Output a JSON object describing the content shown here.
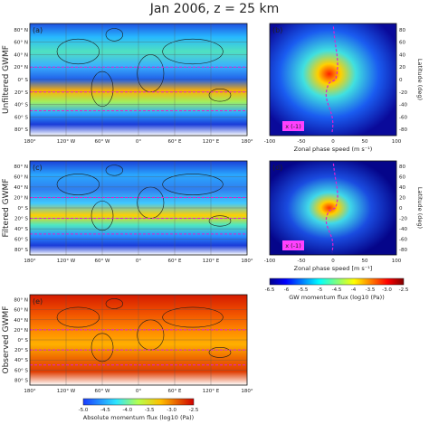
{
  "figure_title": "Jan 2006, z = 25 km",
  "panels": {
    "a": {
      "label": "(a)",
      "row_label": "Unfiltered GWMF"
    },
    "b": {
      "label": "(b)",
      "multiplier": "x (-1)"
    },
    "c": {
      "label": "(c)",
      "row_label": "Filtered GWMF"
    },
    "d": {
      "label": "(d)",
      "multiplier": "x (-1)"
    },
    "e": {
      "label": "(e)",
      "row_label": "Observed GWMF"
    }
  },
  "chart_data": [
    {
      "type": "heatmap",
      "panel": "a",
      "subtitle": "Unfiltered GWMF",
      "x_ticks": [
        "180°",
        "120° W",
        "60° W",
        "0°",
        "60° E",
        "120° E",
        "180°"
      ],
      "y_ticks": [
        "80° N",
        "60° N",
        "40° N",
        "20° N",
        "0° S",
        "20° S",
        "40° S",
        "60° S",
        "80° S"
      ],
      "xlim": [
        -180,
        180
      ],
      "ylim": [
        -90,
        90
      ],
      "reference_lines_lat": [
        20,
        -20,
        -50
      ],
      "colorbar": "Absolute momentum flux (log10 (Pa))"
    },
    {
      "type": "heatmap",
      "panel": "b",
      "xlabel": "Zonal phase speed (m s⁻¹)",
      "ylabel": "Latitude (deg)",
      "x_ticks": [
        -100,
        -50,
        0,
        50,
        100
      ],
      "y_ticks": [
        80,
        60,
        40,
        20,
        0,
        -20,
        -40,
        -60,
        -80
      ],
      "xlim": [
        -100,
        100
      ],
      "ylim": [
        -90,
        90
      ],
      "annotation": "x (-1)"
    },
    {
      "type": "heatmap",
      "panel": "c",
      "subtitle": "Filtered GWMF",
      "x_ticks": [
        "180°",
        "120° W",
        "60° W",
        "0°",
        "60° E",
        "120° E",
        "180°"
      ],
      "y_ticks": [
        "80° N",
        "60° N",
        "40° N",
        "20° N",
        "0° S",
        "20° S",
        "40° S",
        "60° S",
        "80° S"
      ],
      "xlim": [
        -180,
        180
      ],
      "ylim": [
        -90,
        90
      ],
      "reference_lines_lat": [
        20,
        -20,
        -50
      ]
    },
    {
      "type": "heatmap",
      "panel": "d",
      "xlabel": "Zonal phase speed [m s⁻¹]",
      "ylabel": "Latitude (deg)",
      "x_ticks": [
        -100,
        -50,
        0,
        50,
        100
      ],
      "y_ticks": [
        80,
        60,
        40,
        20,
        0,
        -20,
        -40,
        -60,
        -80
      ],
      "xlim": [
        -100,
        100
      ],
      "ylim": [
        -90,
        90
      ],
      "annotation": "x (-1)",
      "colorbar": {
        "label": "GW momentum flux (log10 (Pa))",
        "ticks": [
          -6.5,
          -6.0,
          -5.5,
          -5.0,
          -4.5,
          -4.0,
          -3.5,
          -3.0,
          -2.5
        ],
        "tick_labels": [
          "-6.5",
          "-6",
          "-5.5",
          "-5",
          "-4.5",
          "-4",
          "-3.5",
          "-3.0",
          "-2.5"
        ],
        "range": [
          -6.5,
          -2.5
        ]
      }
    },
    {
      "type": "heatmap",
      "panel": "e",
      "subtitle": "Observed GWMF",
      "x_ticks": [
        "180°",
        "120° W",
        "60° W",
        "0°",
        "60° E",
        "120° E",
        "180°"
      ],
      "y_ticks": [
        "80° N",
        "60° N",
        "40° N",
        "20° N",
        "0° S",
        "20° S",
        "40° S",
        "60° S",
        "80° S"
      ],
      "xlim": [
        -180,
        180
      ],
      "ylim": [
        -90,
        90
      ],
      "reference_lines_lat": [
        20,
        -20,
        -50
      ],
      "colorbar": {
        "label": "Absolute momentum flux (log10 (Pa))",
        "ticks": [
          -5.0,
          -4.5,
          -4.0,
          -3.5,
          -3.0,
          -2.5
        ],
        "tick_labels": [
          "-5.0",
          "-4.5",
          "-4.0",
          "-3.5",
          "-3.0",
          "-2.5"
        ],
        "range": [
          -5.0,
          -2.5
        ]
      }
    }
  ]
}
